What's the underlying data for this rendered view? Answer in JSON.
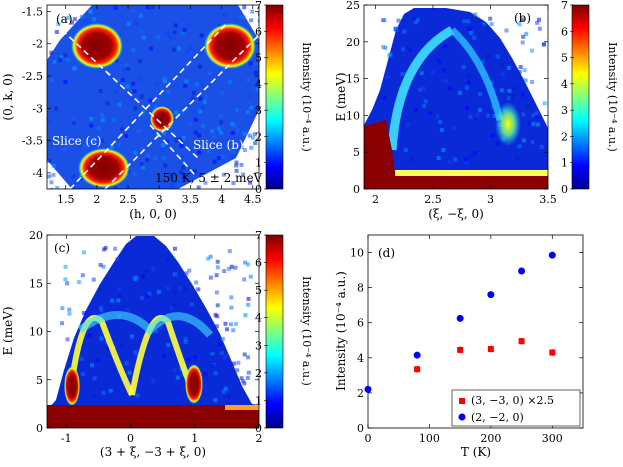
{
  "colors": {
    "cmap": [
      "#00008f",
      "#0000ff",
      "#0080ff",
      "#00ffff",
      "#80ff80",
      "#ffff00",
      "#ff8000",
      "#ff0000",
      "#800000"
    ],
    "red_series": "#ff0000",
    "blue_series": "#0000ff",
    "dashed_line": "#ffffff"
  },
  "chart_data": [
    {
      "panel": "(a)",
      "type": "heatmap",
      "xlabel": "(h, 0, 0)",
      "ylabel": "(0, k, 0)",
      "xticks": [
        "1.5",
        "2",
        "2.5",
        "3",
        "3.5",
        "4",
        "4.5"
      ],
      "yticks": [
        "-1.5",
        "-2",
        "-2.5",
        "-3",
        "-3.5",
        "-4"
      ],
      "xlim": [
        1.2,
        4.6
      ],
      "ylim": [
        -4.25,
        -1.4
      ],
      "annotations": [
        "Slice (c)",
        "Slice (b)",
        "150 K, 5 ± 2 meV"
      ],
      "colorbar": {
        "label": "Intensity (10⁻⁴ a.u.)",
        "ticks": [
          "0",
          "1",
          "2",
          "3",
          "4",
          "5",
          "6",
          "7"
        ],
        "range": [
          0,
          7
        ]
      },
      "hot_spots": [
        {
          "h": 1.95,
          "k": -1.95,
          "intensity": 7
        },
        {
          "h": 4.0,
          "k": -2.0,
          "intensity": 7
        },
        {
          "h": 3.05,
          "k": -3.05,
          "intensity": 6
        },
        {
          "h": 2.1,
          "k": -4.0,
          "intensity": 7
        }
      ]
    },
    {
      "panel": "(b)",
      "type": "heatmap",
      "xlabel": "(ξ, −ξ, 0)",
      "ylabel": "E (meV)",
      "xticks": [
        "2",
        "2.5",
        "3",
        "3.5"
      ],
      "yticks": [
        "0",
        "5",
        "10",
        "15",
        "20",
        "25"
      ],
      "xlim": [
        1.9,
        3.5
      ],
      "ylim": [
        0,
        25
      ],
      "colorbar": {
        "label": "Intensity (10⁻⁴ a.u.)",
        "ticks": [
          "0",
          "1",
          "2",
          "3",
          "4",
          "5",
          "6",
          "7"
        ],
        "range": [
          0,
          7
        ]
      }
    },
    {
      "panel": "(c)",
      "type": "heatmap",
      "xlabel": "(3 + ξ, −3 + ξ, 0)",
      "ylabel": "E (meV)",
      "xticks": [
        "-1",
        "0",
        "1",
        "2"
      ],
      "yticks": [
        "0",
        "5",
        "10",
        "15",
        "20"
      ],
      "xlim": [
        -1.3,
        2.0
      ],
      "ylim": [
        0,
        20
      ],
      "colorbar": {
        "label": "Intensity (10⁻⁴ a.u.)",
        "ticks": [
          "0",
          "1",
          "2",
          "3",
          "4",
          "5",
          "6",
          "7"
        ],
        "range": [
          0,
          7
        ]
      }
    },
    {
      "panel": "(d)",
      "type": "scatter",
      "xlabel": "T (K)",
      "ylabel": "Intensity (10⁻⁴ a.u.)",
      "xticks": [
        "0",
        "100",
        "200",
        "300"
      ],
      "yticks": [
        "0",
        "2",
        "4",
        "6",
        "8",
        "10"
      ],
      "xlim": [
        0,
        350
      ],
      "ylim": [
        0,
        11
      ],
      "legend_position": "bottom-right",
      "series": [
        {
          "name": "(3, −3, 0) ×2.5",
          "marker": "square",
          "x": [
            80,
            150,
            200,
            250,
            300
          ],
          "y": [
            3.35,
            4.45,
            4.5,
            4.95,
            4.3
          ],
          "yerr": [
            0.2,
            0.2,
            0.2,
            0.2,
            0.2
          ]
        },
        {
          "name": "(2, −2, 0)",
          "marker": "circle",
          "x": [
            0,
            80,
            150,
            200,
            250,
            300
          ],
          "y": [
            2.2,
            4.15,
            6.25,
            7.6,
            8.95,
            9.85
          ]
        }
      ]
    }
  ]
}
